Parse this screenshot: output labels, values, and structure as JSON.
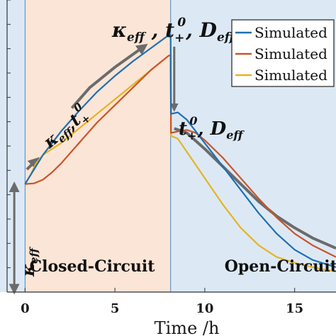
{
  "chart_data": {
    "type": "line",
    "xlabel": "Time /h",
    "ylabel": "",
    "xlim": [
      -1,
      17.3
    ],
    "ylim": [
      0,
      1
    ],
    "x_ticks": [
      0,
      5,
      10,
      15
    ],
    "grid": false,
    "legend_position": "top-right",
    "colors": {
      "closed_circuit": "#fbe5d6",
      "open_circuit": "#dce9f5",
      "blue": "#1f6fb0",
      "orange": "#c9552a",
      "gold": "#e6b323",
      "arrow": "#6b6b6b",
      "switch_line": "#4a88c7"
    },
    "regions": [
      {
        "label": "Closed-Circuit",
        "x_start": 0,
        "x_end": 8.1
      },
      {
        "label": "Open-Circuit",
        "x_start": 8.1,
        "x_end": 17.3
      }
    ],
    "series": [
      {
        "name": "Simulated",
        "color": "#1f6fb0",
        "x": [
          0,
          0.2,
          0.5,
          1,
          1.5,
          2,
          3,
          4,
          5,
          6,
          7,
          8,
          8.1,
          8.12,
          8.5,
          9,
          10,
          11,
          12,
          13,
          14,
          15,
          16,
          17.3
        ],
        "y": [
          0.37,
          0.39,
          0.42,
          0.47,
          0.51,
          0.55,
          0.62,
          0.685,
          0.74,
          0.79,
          0.835,
          0.88,
          0.88,
          0.61,
          0.615,
          0.59,
          0.51,
          0.43,
          0.35,
          0.27,
          0.2,
          0.145,
          0.11,
          0.085
        ]
      },
      {
        "name": "Simulated",
        "color": "#c9552a",
        "x": [
          0,
          0.5,
          1,
          1.5,
          2,
          3,
          4,
          5,
          6,
          7,
          8,
          8.1,
          8.12,
          8.5,
          9,
          9.5,
          10,
          11,
          12,
          13,
          14,
          15,
          16,
          17.3
        ],
        "y": [
          0.37,
          0.372,
          0.385,
          0.41,
          0.44,
          0.51,
          0.58,
          0.64,
          0.7,
          0.76,
          0.81,
          0.81,
          0.545,
          0.55,
          0.555,
          0.545,
          0.52,
          0.46,
          0.39,
          0.32,
          0.255,
          0.2,
          0.16,
          0.12
        ]
      },
      {
        "name": "Simulated",
        "color": "#e6b323",
        "x": [
          0,
          0.3,
          0.6,
          1,
          1.5,
          2,
          3,
          4,
          5,
          6,
          7,
          8,
          8.1,
          8.12,
          8.5,
          9,
          10,
          11,
          12,
          13,
          14,
          15,
          16,
          17.3
        ],
        "y": [
          0.37,
          0.4,
          0.44,
          0.47,
          0.49,
          0.51,
          0.56,
          0.61,
          0.66,
          0.71,
          0.76,
          0.81,
          0.81,
          0.535,
          0.525,
          0.48,
          0.39,
          0.3,
          0.22,
          0.16,
          0.12,
          0.1,
          0.085,
          0.07
        ]
      },
      {
        "name": "",
        "color": "#6b6b6b",
        "x": [
          8.3,
          9,
          10,
          11,
          12,
          13,
          14,
          15,
          16,
          17.3
        ],
        "y": [
          0.56,
          0.545,
          0.49,
          0.43,
          0.37,
          0.31,
          0.26,
          0.22,
          0.185,
          0.15
        ]
      }
    ],
    "annotations": [
      {
        "text": "κeff",
        "note": "vertical, left gap arrow"
      },
      {
        "text": "κeff,t+0",
        "note": "rotated along rising arrow"
      },
      {
        "text": "κeff , t+0, Deff",
        "note": "top near switch-off peak"
      },
      {
        "text": "t+0, Deff",
        "note": "after downward arrow"
      }
    ],
    "legend": {
      "entries": [
        {
          "label": "Simulated",
          "color": "#1f6fb0"
        },
        {
          "label": "Simulated",
          "color": "#c9552a"
        },
        {
          "label": "Simulated",
          "color": "#e6b323"
        }
      ]
    }
  }
}
